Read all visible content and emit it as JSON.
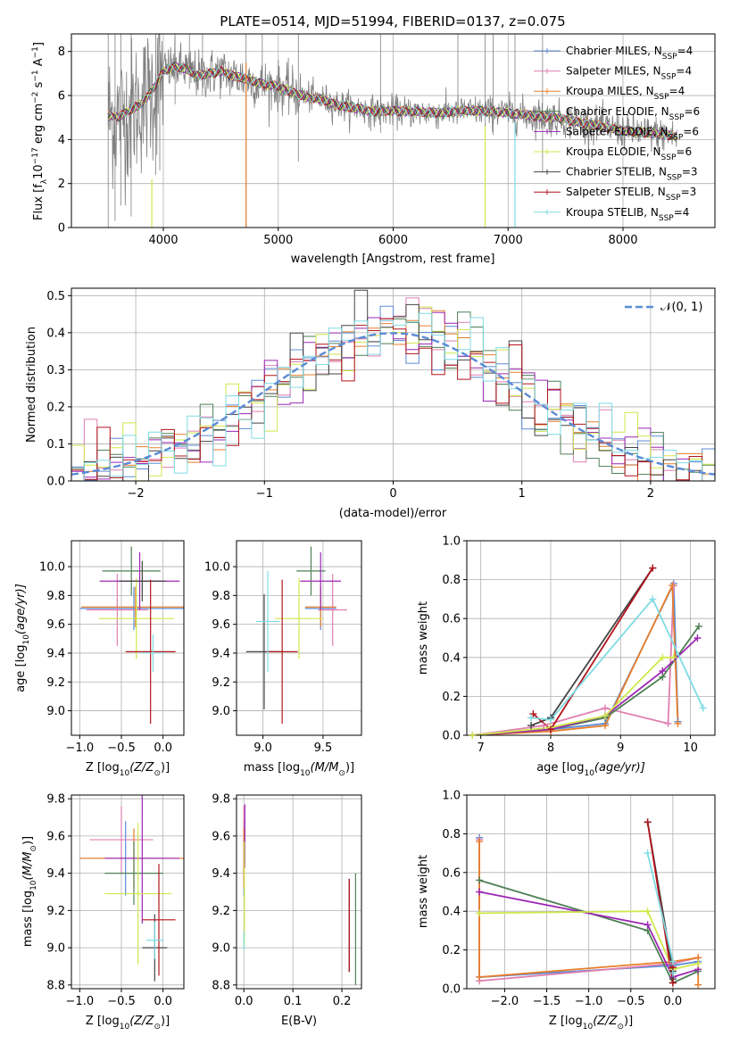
{
  "figure": {
    "title": "PLATE=0514, MJD=51994, FIBERID=0137, z=0.075"
  },
  "series": [
    {
      "name": "Chabrier MILES, N",
      "sub": "SSP",
      "tail": "=4",
      "color": "#5b8bd6"
    },
    {
      "name": "Salpeter MILES, N",
      "sub": "SSP",
      "tail": "=4",
      "color": "#e07fb0"
    },
    {
      "name": "Kroupa MILES, N",
      "sub": "SSP",
      "tail": "=4",
      "color": "#e87e2a"
    },
    {
      "name": "Chabrier ELODIE, N",
      "sub": "SSP",
      "tail": "=6",
      "color": "#4f7f55"
    },
    {
      "name": "Salpeter ELODIE, N",
      "sub": "SSP",
      "tail": "=6",
      "color": "#9b27b3"
    },
    {
      "name": "Kroupa ELODIE, N",
      "sub": "SSP",
      "tail": "=6",
      "color": "#cfe84a"
    },
    {
      "name": "Chabrier STELIB, N",
      "sub": "SSP",
      "tail": "=3",
      "color": "#444444"
    },
    {
      "name": "Salpeter STELIB, N",
      "sub": "SSP",
      "tail": "=3",
      "color": "#b2141c"
    },
    {
      "name": "Kroupa STELIB, N",
      "sub": "SSP",
      "tail": "=4",
      "color": "#7fdbe3"
    }
  ],
  "chart_data": [
    {
      "id": "spectrum",
      "type": "line",
      "xlabel": "wavelength [Angstrom, rest frame]",
      "ylabel_main": "Flux [f",
      "ylabel_sub": "λ",
      "ylabel_mid": "10",
      "ylabel_sup1": "−17",
      "ylabel_tail": " erg cm",
      "ylabel_sup2": "−2",
      "ylabel_tail2": " s",
      "ylabel_sup3": "−1",
      "ylabel_tail3": " A",
      "ylabel_sup4": "−1",
      "ylabel_end": "]",
      "xlim": [
        3200,
        8800
      ],
      "ylim": [
        0,
        8.8
      ],
      "xticks": [
        4000,
        5000,
        6000,
        7000,
        8000
      ],
      "yticks": [
        0,
        2,
        4,
        6,
        8
      ],
      "data_color": "#808080",
      "continuum": [
        [
          3520,
          5.1
        ],
        [
          3600,
          5.0
        ],
        [
          3700,
          5.3
        ],
        [
          3800,
          5.6
        ],
        [
          3900,
          6.2
        ],
        [
          4000,
          7.1
        ],
        [
          4100,
          7.3
        ],
        [
          4200,
          7.2
        ],
        [
          4300,
          6.9
        ],
        [
          4400,
          7.0
        ],
        [
          4500,
          7.1
        ],
        [
          4600,
          6.9
        ],
        [
          4700,
          6.8
        ],
        [
          4800,
          6.6
        ],
        [
          4900,
          6.5
        ],
        [
          5000,
          6.4
        ],
        [
          5100,
          6.2
        ],
        [
          5200,
          6.0
        ],
        [
          5300,
          5.9
        ],
        [
          5400,
          5.8
        ],
        [
          5500,
          5.6
        ],
        [
          5600,
          5.5
        ],
        [
          5700,
          5.4
        ],
        [
          5800,
          5.3
        ],
        [
          5900,
          5.3
        ],
        [
          6000,
          5.3
        ],
        [
          6200,
          5.25
        ],
        [
          6400,
          5.2
        ],
        [
          6600,
          5.3
        ],
        [
          6800,
          5.3
        ],
        [
          7000,
          5.2
        ],
        [
          7200,
          5.1
        ],
        [
          7400,
          5.0
        ],
        [
          7600,
          4.8
        ],
        [
          7800,
          4.6
        ],
        [
          8000,
          4.4
        ],
        [
          8200,
          4.3
        ],
        [
          8400,
          4.2
        ],
        [
          8470,
          4.1
        ]
      ],
      "absorption_lines": [
        [
          3520,
          0.0
        ],
        [
          3580,
          0.3
        ],
        [
          3630,
          1.0
        ],
        [
          3720,
          0.5
        ],
        [
          3934,
          2.4
        ],
        [
          3969,
          2.6
        ],
        [
          4102,
          5.6
        ],
        [
          4227,
          6.3
        ],
        [
          4341,
          6.0
        ],
        [
          4720,
          0.0
        ],
        [
          4861,
          6.0
        ],
        [
          5175,
          3.0
        ],
        [
          5890,
          4.3
        ],
        [
          6563,
          5.0
        ],
        [
          6800,
          0.0
        ],
        [
          6870,
          4.2
        ],
        [
          7060,
          0.0
        ],
        [
          7300,
          2.5
        ]
      ]
    },
    {
      "id": "residuals",
      "type": "line",
      "xlabel": "(data-model)/error",
      "ylabel": "Normed distribution",
      "legend": "𝒩(0, 1)",
      "legend_position": "upper right",
      "xlim": [
        -2.5,
        2.5
      ],
      "ylim": [
        0,
        0.52
      ],
      "xticks": [
        -2,
        -1,
        0,
        1,
        2
      ],
      "yticks": [
        0.0,
        0.1,
        0.2,
        0.3,
        0.4,
        0.5
      ],
      "bin_width": 0.1,
      "grid": true
    },
    {
      "id": "age-vs-z",
      "type": "scatter",
      "xlabel_main": "Z [log",
      "xlabel_sub": "10",
      "xlabel_rest": "(Z/Z",
      "xlabel_sub2": "⊙",
      "xlabel_end": ")]",
      "ylabel_main": "age  [log",
      "ylabel_sub": "10",
      "ylabel_rest": "(age/yr)]",
      "xlim": [
        -1.1,
        0.25
      ],
      "ylim": [
        8.83,
        10.18
      ],
      "xticks": [
        -1.0,
        -0.5,
        0.0
      ],
      "yticks": [
        9.0,
        9.2,
        9.4,
        9.6,
        9.8,
        10.0
      ],
      "points": [
        {
          "series": 0,
          "x": -0.35,
          "xerr": 0.65,
          "y": 9.71,
          "yerr": 0.15
        },
        {
          "series": 1,
          "x": -0.55,
          "xerr": 0.37,
          "y": 9.7,
          "yerr": 0.25
        },
        {
          "series": 2,
          "x": -0.33,
          "xerr": 0.65,
          "y": 9.72,
          "yerr": 0.14
        },
        {
          "series": 3,
          "x": -0.38,
          "xerr": 0.35,
          "y": 9.97,
          "yerr": 0.17
        },
        {
          "series": 4,
          "x": -0.28,
          "xerr": 0.48,
          "y": 9.9,
          "yerr": 0.2
        },
        {
          "series": 5,
          "x": -0.32,
          "xerr": 0.45,
          "y": 9.64,
          "yerr": 0.28
        },
        {
          "series": 6,
          "x": -0.25,
          "xerr": 0.28,
          "y": 9.9,
          "yerr": 0.14
        },
        {
          "series": 7,
          "x": -0.15,
          "xerr": 0.3,
          "y": 9.41,
          "yerr": 0.5
        },
        {
          "series": 8,
          "x": -0.12,
          "xerr": 0.15,
          "y": 9.4,
          "yerr": 0.13
        }
      ]
    },
    {
      "id": "age-vs-mass",
      "type": "scatter",
      "xlabel_main": "mass [log",
      "xlabel_sub": "10",
      "xlabel_rest": "(M/M",
      "xlabel_sub2": "⊙",
      "xlabel_end": ")]",
      "xlim": [
        8.78,
        9.82
      ],
      "ylim": [
        8.83,
        10.18
      ],
      "xticks": [
        9.0,
        9.5
      ],
      "yticks": [
        9.0,
        9.2,
        9.4,
        9.6,
        9.8,
        10.0
      ],
      "points": [
        {
          "series": 0,
          "x": 9.48,
          "xerr": 0.13,
          "y": 9.71,
          "yerr": 0.15
        },
        {
          "series": 1,
          "x": 9.58,
          "xerr": 0.12,
          "y": 9.7,
          "yerr": 0.25
        },
        {
          "series": 2,
          "x": 9.48,
          "xerr": 0.13,
          "y": 9.72,
          "yerr": 0.14
        },
        {
          "series": 3,
          "x": 9.4,
          "xerr": 0.12,
          "y": 9.97,
          "yerr": 0.17
        },
        {
          "series": 4,
          "x": 9.48,
          "xerr": 0.17,
          "y": 9.9,
          "yerr": 0.2
        },
        {
          "series": 5,
          "x": 9.3,
          "xerr": 0.2,
          "y": 9.64,
          "yerr": 0.28
        },
        {
          "series": 6,
          "x": 9.01,
          "xerr": 0.15,
          "y": 9.41,
          "yerr": 0.4
        },
        {
          "series": 7,
          "x": 9.16,
          "xerr": 0.13,
          "y": 9.41,
          "yerr": 0.5
        },
        {
          "series": 8,
          "x": 9.04,
          "xerr": 0.1,
          "y": 9.62,
          "yerr": 0.35
        }
      ]
    },
    {
      "id": "mass-weight-vs-age",
      "type": "line",
      "xlabel_main": "age  [log",
      "xlabel_sub": "10",
      "xlabel_rest": "(age/yr)]",
      "ylabel": "mass weight",
      "xlim": [
        6.8,
        10.35
      ],
      "ylim": [
        0,
        1
      ],
      "xticks": [
        7,
        8,
        9,
        10
      ],
      "yticks": [
        0.0,
        0.2,
        0.4,
        0.6,
        0.8,
        1.0
      ],
      "grid": true,
      "lines": [
        {
          "series": 0,
          "x": [
            6.88,
            8.0,
            8.78,
            9.76,
            9.82
          ],
          "y": [
            0.0,
            0.03,
            0.06,
            0.78,
            0.07
          ]
        },
        {
          "series": 1,
          "x": [
            6.88,
            7.9,
            8.78,
            9.68,
            9.76
          ],
          "y": [
            0.0,
            0.05,
            0.14,
            0.06,
            0.77
          ]
        },
        {
          "series": 2,
          "x": [
            6.88,
            8.0,
            8.78,
            9.74,
            9.82
          ],
          "y": [
            0.0,
            0.02,
            0.05,
            0.77,
            0.06
          ]
        },
        {
          "series": 3,
          "x": [
            6.88,
            8.0,
            8.78,
            9.6,
            10.12
          ],
          "y": [
            0.0,
            0.03,
            0.09,
            0.3,
            0.56
          ]
        },
        {
          "series": 4,
          "x": [
            6.88,
            8.0,
            8.78,
            9.6,
            10.1
          ],
          "y": [
            0.0,
            0.03,
            0.1,
            0.33,
            0.5
          ]
        },
        {
          "series": 5,
          "x": [
            6.88,
            8.0,
            8.78,
            9.6,
            9.76
          ],
          "y": [
            0.0,
            0.04,
            0.1,
            0.4,
            0.4
          ]
        },
        {
          "series": 6,
          "x": [
            7.72,
            8.0,
            9.46
          ],
          "y": [
            0.05,
            0.09,
            0.86
          ]
        },
        {
          "series": 7,
          "x": [
            7.75,
            8.0,
            9.46
          ],
          "y": [
            0.11,
            0.03,
            0.86
          ]
        },
        {
          "series": 8,
          "x": [
            7.72,
            8.0,
            9.46,
            10.18
          ],
          "y": [
            0.09,
            0.08,
            0.7,
            0.14
          ]
        }
      ]
    },
    {
      "id": "mass-vs-z",
      "type": "scatter",
      "xlabel_main": "Z [log",
      "xlabel_sub": "10",
      "xlabel_rest": "(Z/Z",
      "xlabel_sub2": "⊙",
      "xlabel_end": ")]",
      "ylabel_main": "mass [log",
      "ylabel_sub": "10",
      "ylabel_rest": "(M/M",
      "ylabel_sub2": "⊙",
      "ylabel_end": ")]",
      "xlim": [
        -1.1,
        0.25
      ],
      "ylim": [
        8.78,
        9.82
      ],
      "xticks": [
        -1.0,
        -0.5,
        0.0
      ],
      "yticks": [
        8.8,
        9.0,
        9.2,
        9.4,
        9.6,
        9.8
      ],
      "points": [
        {
          "series": 0,
          "x": -0.45,
          "xerr": 0.55,
          "y": 9.48,
          "yerr": 0.2
        },
        {
          "series": 1,
          "x": -0.5,
          "xerr": 0.38,
          "y": 9.58,
          "yerr": 0.18
        },
        {
          "series": 2,
          "x": -0.35,
          "xerr": 0.65,
          "y": 9.48,
          "yerr": 0.16
        },
        {
          "series": 3,
          "x": -0.35,
          "xerr": 0.35,
          "y": 9.4,
          "yerr": 0.17
        },
        {
          "series": 4,
          "x": -0.25,
          "xerr": 0.45,
          "y": 9.48,
          "yerr": 0.35
        },
        {
          "series": 5,
          "x": -0.3,
          "xerr": 0.4,
          "y": 9.29,
          "yerr": 0.38
        },
        {
          "series": 6,
          "x": -0.1,
          "xerr": 0.15,
          "y": 9.0,
          "yerr": 0.18
        },
        {
          "series": 7,
          "x": -0.05,
          "xerr": 0.2,
          "y": 9.15,
          "yerr": 0.3
        },
        {
          "series": 8,
          "x": -0.1,
          "xerr": 0.1,
          "y": 9.04,
          "yerr": 0.1
        }
      ]
    },
    {
      "id": "mass-vs-ebv",
      "type": "scatter",
      "xlabel": "E(B-V)",
      "xlim": [
        -0.015,
        0.24
      ],
      "ylim": [
        8.78,
        9.82
      ],
      "xticks": [
        0.0,
        0.1,
        0.2
      ],
      "yticks": [
        8.8,
        9.0,
        9.2,
        9.4,
        9.6,
        9.8
      ],
      "points": [
        {
          "series": 0,
          "x": 0.0,
          "y": 9.48,
          "yerr": 0.2
        },
        {
          "series": 1,
          "x": 0.0,
          "y": 9.58,
          "yerr": 0.18
        },
        {
          "series": 2,
          "x": 0.0,
          "y": 9.48,
          "yerr": 0.16
        },
        {
          "series": 3,
          "x": 0.228,
          "y": 9.1,
          "yerr": 0.3
        },
        {
          "series": 4,
          "x": 0.002,
          "y": 9.6,
          "yerr": 0.17
        },
        {
          "series": 5,
          "x": 0.001,
          "y": 9.29,
          "yerr": 0.28
        },
        {
          "series": 6,
          "x": 0.215,
          "y": 9.12,
          "yerr": 0.25
        },
        {
          "series": 7,
          "x": 0.215,
          "y": 9.12,
          "yerr": 0.25
        },
        {
          "series": 8,
          "x": 0.0,
          "y": 9.04,
          "yerr": 0.05
        }
      ]
    },
    {
      "id": "mass-weight-vs-z",
      "type": "line",
      "xlabel_main": "Z [log",
      "xlabel_sub": "10",
      "xlabel_rest": "(Z/Z",
      "xlabel_sub2": "⊙",
      "xlabel_end": ")]",
      "ylabel": "mass weight",
      "xlim": [
        -2.45,
        0.5
      ],
      "ylim": [
        0,
        1
      ],
      "xticks": [
        -2.0,
        -1.5,
        -1.0,
        -0.5,
        0.0
      ],
      "yticks": [
        0.0,
        0.2,
        0.4,
        0.6,
        0.8,
        1.0
      ],
      "grid": true,
      "lines": [
        {
          "series": 0,
          "x": [
            -2.3,
            -2.3,
            0.0,
            0.3
          ],
          "y": [
            0.78,
            0.06,
            0.12,
            0.14
          ]
        },
        {
          "series": 1,
          "x": [
            -2.3,
            -2.3,
            0.0,
            0.3
          ],
          "y": [
            0.77,
            0.04,
            0.13,
            0.16
          ]
        },
        {
          "series": 2,
          "x": [
            -2.3,
            -2.3,
            0.0,
            0.3,
            0.3
          ],
          "y": [
            0.76,
            0.06,
            0.14,
            0.16,
            0.02
          ]
        },
        {
          "series": 3,
          "x": [
            -2.3,
            -0.3,
            0.0,
            0.3
          ],
          "y": [
            0.56,
            0.3,
            0.03,
            0.09
          ]
        },
        {
          "series": 4,
          "x": [
            -2.3,
            -0.3,
            0.0,
            0.3
          ],
          "y": [
            0.5,
            0.33,
            0.06,
            0.1
          ]
        },
        {
          "series": 5,
          "x": [
            -2.3,
            -0.3,
            0.0,
            0.3
          ],
          "y": [
            0.39,
            0.4,
            0.1,
            0.13
          ]
        },
        {
          "series": 6,
          "x": [
            -0.3,
            0.0,
            0.0
          ],
          "y": [
            0.86,
            0.09,
            0.05
          ]
        },
        {
          "series": 7,
          "x": [
            -0.3,
            0.0,
            0.0
          ],
          "y": [
            0.86,
            0.03,
            0.11
          ]
        },
        {
          "series": 8,
          "x": [
            -0.3,
            0.0,
            0.0
          ],
          "y": [
            0.7,
            0.14,
            0.08
          ]
        }
      ]
    }
  ]
}
